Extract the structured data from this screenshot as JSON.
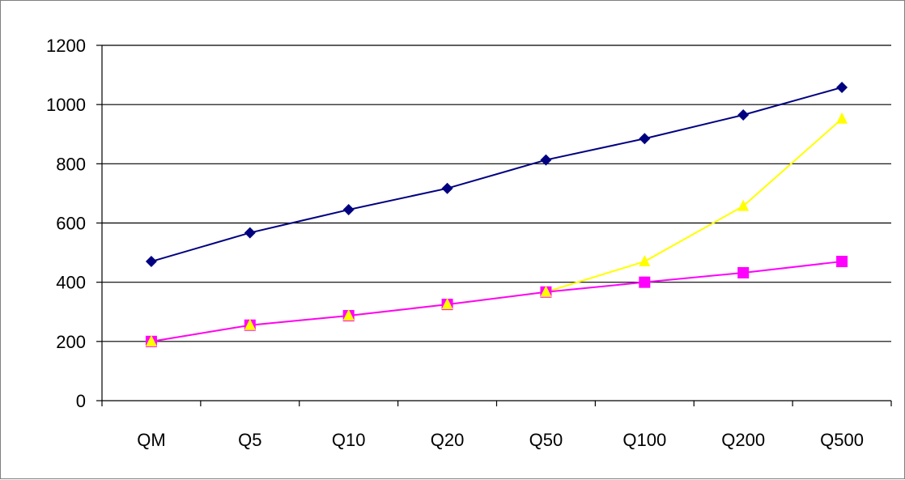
{
  "chart_data": {
    "type": "line",
    "title": "",
    "xlabel": "",
    "ylabel": "",
    "categories": [
      "QM",
      "Q5",
      "Q10",
      "Q20",
      "Q50",
      "Q100",
      "Q200",
      "Q500"
    ],
    "ylim": [
      0,
      1200
    ],
    "yticks": [
      0,
      200,
      400,
      600,
      800,
      1000,
      1200
    ],
    "grid": "horizontal",
    "legend": "none",
    "series": [
      {
        "values": [
          470,
          567,
          645,
          717,
          813,
          885,
          965,
          1058
        ],
        "color": "#000080",
        "marker": "diamond"
      },
      {
        "values": [
          200,
          255,
          287,
          325,
          367,
          400,
          432,
          470
        ],
        "color": "#ff00ff",
        "marker": "square"
      },
      {
        "values": [
          200,
          255,
          287,
          325,
          367,
          470,
          657,
          952
        ],
        "color": "#ffff00",
        "marker": "triangle"
      }
    ]
  }
}
